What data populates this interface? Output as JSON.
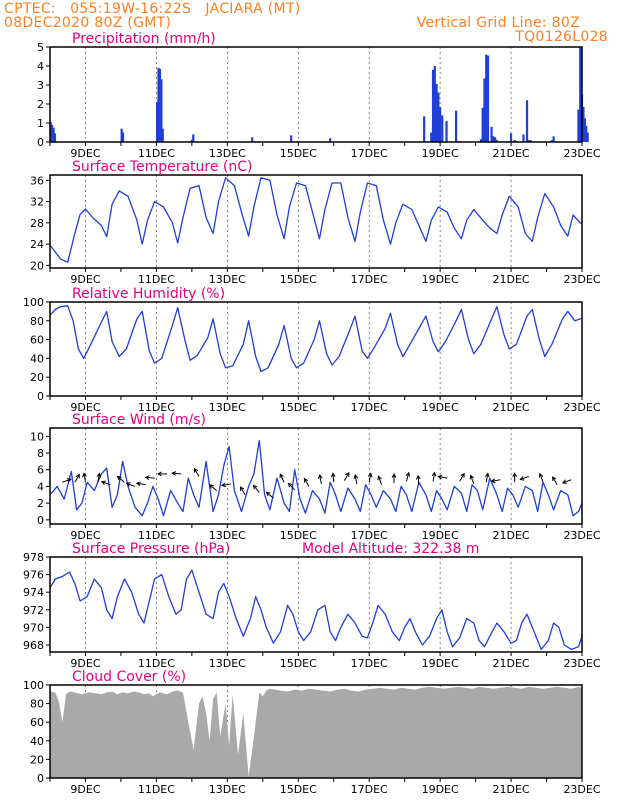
{
  "header": {
    "line1_left": "CPTEC:   055:19W-16:22S   JACIARA (MT)",
    "line2_left": "08DEC2020 80Z (GMT)",
    "line1_right": "Vertical Grid Line: 80Z",
    "line2_right": "TQ0126L028"
  },
  "colors": {
    "header": "#ff7f1f",
    "titles": "#e6007e",
    "series": "#1f3fd6",
    "cloud": "#a9a9a9"
  },
  "x_axis": {
    "start": "08DEC2020 00Z",
    "end": "23DEC2020 00Z",
    "tick_labels": [
      "9DEC",
      "11DEC",
      "13DEC",
      "15DEC",
      "17DEC",
      "19DEC",
      "21DEC",
      "23DEC"
    ]
  },
  "chart_data": [
    {
      "id": "precip",
      "type": "bar",
      "title": "Precipitation (mm/h)",
      "ylim": [
        0,
        5
      ],
      "yticks": [
        0,
        1,
        2,
        3,
        4,
        5
      ],
      "x_day": [
        0.02,
        0.06,
        0.1,
        0.14,
        2.02,
        2.06,
        3.02,
        3.06,
        3.1,
        3.14,
        3.18,
        4.0,
        4.04,
        5.7,
        6.8,
        7.9,
        10.55,
        10.75,
        10.8,
        10.85,
        10.9,
        10.95,
        11.0,
        11.06,
        11.18,
        11.45,
        11.55,
        12.15,
        12.2,
        12.25,
        12.3,
        12.35,
        12.45,
        12.5,
        12.55,
        12.6,
        13.0,
        13.1,
        13.35,
        13.45,
        13.5,
        13.55,
        14.15,
        14.2,
        14.9,
        14.95,
        15.0,
        15.04,
        15.08,
        15.12,
        15.16
      ],
      "values": [
        1.05,
        0.9,
        0.75,
        0.45,
        0.7,
        0.5,
        2.1,
        3.9,
        3.85,
        3.3,
        0.7,
        0.12,
        0.4,
        0.25,
        0.35,
        0.2,
        1.35,
        0.5,
        3.8,
        4.0,
        3.05,
        2.6,
        1.85,
        1.4,
        1.1,
        1.65,
        0.05,
        0.15,
        1.8,
        3.35,
        4.6,
        4.55,
        0.8,
        0.3,
        0.25,
        0.1,
        0.45,
        0.1,
        0.4,
        2.2,
        0.1,
        0.1,
        0.1,
        0.3,
        1.7,
        5.0,
        2.5,
        1.85,
        1.25,
        0.85,
        0.5
      ]
    },
    {
      "id": "temp",
      "type": "line",
      "title": "Surface Temperature (nC)",
      "ylim": [
        19.5,
        37
      ],
      "yticks": [
        20,
        24,
        28,
        32,
        36
      ],
      "x": [
        0,
        0.3,
        0.5,
        0.7,
        0.85,
        1.0,
        1.2,
        1.45,
        1.6,
        1.75,
        1.95,
        2.2,
        2.45,
        2.6,
        2.75,
        2.95,
        3.2,
        3.45,
        3.6,
        3.75,
        3.95,
        4.2,
        4.4,
        4.6,
        4.75,
        4.95,
        5.2,
        5.4,
        5.6,
        5.75,
        5.95,
        6.2,
        6.4,
        6.6,
        6.75,
        6.95,
        7.2,
        7.4,
        7.6,
        7.75,
        7.95,
        8.2,
        8.4,
        8.6,
        8.75,
        8.95,
        9.2,
        9.4,
        9.6,
        9.75,
        9.95,
        10.2,
        10.4,
        10.6,
        10.75,
        10.95,
        11.2,
        11.4,
        11.6,
        11.75,
        11.95,
        12.2,
        12.4,
        12.6,
        12.75,
        12.95,
        13.2,
        13.4,
        13.6,
        13.75,
        13.95,
        14.2,
        14.4,
        14.6,
        14.75,
        14.95,
        15.0
      ],
      "y": [
        23.8,
        21.2,
        20.6,
        26.0,
        29.6,
        30.6,
        29.0,
        27.5,
        25.4,
        31.5,
        34.0,
        33.0,
        28.5,
        24.0,
        28.5,
        32.0,
        31.0,
        28.0,
        24.2,
        29.0,
        34.5,
        35.0,
        29.0,
        26.0,
        32.0,
        36.5,
        35.0,
        30.0,
        25.5,
        31.0,
        36.5,
        36.0,
        29.5,
        25.0,
        31.0,
        35.5,
        35.0,
        30.0,
        25.0,
        30.5,
        35.5,
        35.5,
        29.0,
        24.5,
        30.0,
        35.5,
        35.0,
        28.5,
        24.0,
        28.0,
        31.5,
        30.5,
        27.5,
        24.5,
        28.5,
        31.0,
        30.0,
        27.0,
        25.0,
        28.5,
        30.5,
        28.5,
        27.0,
        26.0,
        29.5,
        33.0,
        31.0,
        26.0,
        24.5,
        29.0,
        33.5,
        31.0,
        27.5,
        25.5,
        29.5,
        28.0,
        27.8
      ]
    },
    {
      "id": "rh",
      "type": "line",
      "title": "Relative Humidity (%)",
      "ylim": [
        0,
        100
      ],
      "yticks": [
        0,
        20,
        40,
        60,
        80,
        100
      ],
      "x": [
        0,
        0.15,
        0.3,
        0.5,
        0.65,
        0.8,
        0.95,
        1.15,
        1.4,
        1.6,
        1.75,
        1.95,
        2.15,
        2.45,
        2.6,
        2.8,
        2.95,
        3.15,
        3.45,
        3.6,
        3.8,
        3.95,
        4.15,
        4.45,
        4.6,
        4.8,
        4.95,
        5.15,
        5.45,
        5.6,
        5.8,
        5.95,
        6.15,
        6.45,
        6.6,
        6.8,
        6.95,
        7.15,
        7.45,
        7.6,
        7.8,
        7.95,
        8.15,
        8.45,
        8.6,
        8.8,
        8.95,
        9.15,
        9.45,
        9.6,
        9.8,
        9.95,
        10.15,
        10.45,
        10.6,
        10.8,
        10.95,
        11.15,
        11.45,
        11.6,
        11.8,
        11.95,
        12.15,
        12.45,
        12.6,
        12.8,
        12.95,
        13.15,
        13.45,
        13.6,
        13.8,
        13.95,
        14.15,
        14.45,
        14.6,
        14.8,
        14.95,
        15.0
      ],
      "y": [
        86,
        92,
        95,
        96,
        80,
        50,
        40,
        55,
        75,
        90,
        58,
        42,
        50,
        82,
        90,
        48,
        35,
        40,
        75,
        94,
        60,
        38,
        43,
        62,
        82,
        45,
        30,
        32,
        55,
        80,
        42,
        26,
        30,
        55,
        75,
        40,
        30,
        35,
        60,
        80,
        45,
        33,
        42,
        70,
        85,
        48,
        40,
        52,
        72,
        88,
        55,
        42,
        55,
        75,
        85,
        58,
        47,
        58,
        80,
        92,
        60,
        45,
        55,
        82,
        95,
        65,
        50,
        55,
        85,
        92,
        60,
        42,
        55,
        82,
        90,
        80,
        82,
        83
      ]
    },
    {
      "id": "wind",
      "type": "line",
      "title": "Surface Wind (m/s)",
      "ylim": [
        -0.5,
        11
      ],
      "yticks": [
        0,
        2,
        4,
        6,
        8,
        10
      ],
      "x": [
        0,
        0.2,
        0.4,
        0.6,
        0.75,
        0.9,
        1.05,
        1.25,
        1.45,
        1.6,
        1.75,
        1.9,
        2.05,
        2.2,
        2.4,
        2.6,
        2.75,
        2.9,
        3.05,
        3.2,
        3.4,
        3.6,
        3.75,
        3.9,
        4.05,
        4.2,
        4.4,
        4.6,
        4.75,
        4.9,
        5.05,
        5.2,
        5.4,
        5.6,
        5.75,
        5.9,
        6.05,
        6.2,
        6.4,
        6.6,
        6.75,
        6.9,
        7.05,
        7.2,
        7.4,
        7.6,
        7.75,
        7.9,
        8.05,
        8.2,
        8.4,
        8.6,
        8.75,
        8.9,
        9.05,
        9.2,
        9.4,
        9.6,
        9.75,
        9.9,
        10.05,
        10.2,
        10.4,
        10.6,
        10.75,
        10.9,
        11.05,
        11.2,
        11.4,
        11.6,
        11.75,
        11.9,
        12.05,
        12.2,
        12.4,
        12.6,
        12.75,
        12.9,
        13.05,
        13.2,
        13.4,
        13.6,
        13.75,
        13.9,
        14.05,
        14.2,
        14.4,
        14.6,
        14.75,
        14.9,
        15.0
      ],
      "y": [
        3.0,
        4.0,
        2.5,
        5.8,
        1.2,
        2.0,
        4.5,
        3.5,
        5.5,
        6.2,
        1.5,
        3.0,
        7.0,
        4.0,
        1.5,
        0.5,
        2.0,
        4.0,
        2.5,
        0.5,
        3.5,
        2.0,
        1.0,
        5.0,
        3.0,
        1.5,
        7.0,
        1.0,
        3.0,
        6.5,
        8.8,
        3.5,
        1.0,
        4.0,
        5.5,
        9.5,
        3.0,
        1.2,
        5.0,
        2.0,
        1.0,
        6.0,
        2.5,
        0.8,
        3.5,
        2.5,
        0.8,
        4.5,
        3.0,
        1.0,
        3.8,
        2.5,
        1.0,
        4.2,
        3.0,
        1.5,
        3.5,
        2.5,
        1.0,
        4.0,
        3.0,
        1.0,
        4.5,
        3.0,
        1.0,
        3.5,
        2.5,
        1.2,
        4.0,
        3.2,
        1.0,
        4.2,
        3.5,
        1.2,
        5.0,
        3.0,
        1.0,
        3.8,
        3.0,
        1.5,
        4.0,
        3.5,
        1.0,
        4.5,
        3.0,
        1.2,
        3.5,
        3.0,
        0.5,
        1.0,
        2.0
      ],
      "barbs": [
        {
          "x": 0.35,
          "y": 4.5,
          "dir": -20
        },
        {
          "x": 0.7,
          "y": 4.5,
          "dir": -60
        },
        {
          "x": 1.0,
          "y": 4.5,
          "dir": -100
        },
        {
          "x": 1.35,
          "y": 4.5,
          "dir": -80
        },
        {
          "x": 1.7,
          "y": 4.2,
          "dir": 200
        },
        {
          "x": 2.1,
          "y": 4.5,
          "dir": -140
        },
        {
          "x": 2.4,
          "y": 4.0,
          "dir": -160
        },
        {
          "x": 2.7,
          "y": 4.2,
          "dir": 190
        },
        {
          "x": 2.95,
          "y": 5.0,
          "dir": 185
        },
        {
          "x": 3.3,
          "y": 5.5,
          "dir": 180
        },
        {
          "x": 3.7,
          "y": 5.5,
          "dir": 185
        },
        {
          "x": 4.2,
          "y": 5.2,
          "dir": -120
        },
        {
          "x": 4.7,
          "y": 3.5,
          "dir": -140
        },
        {
          "x": 5.1,
          "y": 4.3,
          "dir": 170
        },
        {
          "x": 5.5,
          "y": 3.0,
          "dir": -120
        },
        {
          "x": 5.9,
          "y": 3.3,
          "dir": -130
        },
        {
          "x": 6.3,
          "y": 2.6,
          "dir": -140
        },
        {
          "x": 6.6,
          "y": 4.5,
          "dir": -115
        },
        {
          "x": 6.9,
          "y": 3.6,
          "dir": -135
        },
        {
          "x": 7.3,
          "y": 4.0,
          "dir": -120
        },
        {
          "x": 7.65,
          "y": 4.3,
          "dir": -100
        },
        {
          "x": 8.0,
          "y": 4.5,
          "dir": -95
        },
        {
          "x": 8.3,
          "y": 4.7,
          "dir": -60
        },
        {
          "x": 8.65,
          "y": 4.3,
          "dir": -100
        },
        {
          "x": 9.0,
          "y": 4.5,
          "dir": -80
        },
        {
          "x": 9.35,
          "y": 4.2,
          "dir": -110
        },
        {
          "x": 9.7,
          "y": 4.4,
          "dir": -90
        },
        {
          "x": 10.05,
          "y": 4.6,
          "dir": -75
        },
        {
          "x": 10.4,
          "y": 4.2,
          "dir": -95
        },
        {
          "x": 10.8,
          "y": 4.6,
          "dir": -80
        },
        {
          "x": 11.2,
          "y": 5.0,
          "dir": 190
        },
        {
          "x": 11.55,
          "y": 4.6,
          "dir": -60
        },
        {
          "x": 11.95,
          "y": 4.3,
          "dir": -110
        },
        {
          "x": 12.3,
          "y": 4.5,
          "dir": -80
        },
        {
          "x": 12.7,
          "y": 4.8,
          "dir": 170
        },
        {
          "x": 13.1,
          "y": 4.5,
          "dir": -90
        },
        {
          "x": 13.5,
          "y": 5.2,
          "dir": 160
        },
        {
          "x": 13.9,
          "y": 4.5,
          "dir": -110
        },
        {
          "x": 14.3,
          "y": 4.2,
          "dir": -120
        },
        {
          "x": 14.7,
          "y": 4.8,
          "dir": 160
        }
      ]
    },
    {
      "id": "pressure",
      "type": "line",
      "title": "Surface Pressure (hPa)",
      "annotation": "Model Altitude: 322.38 m",
      "ylim": [
        967.2,
        978
      ],
      "yticks": [
        968,
        970,
        972,
        974,
        976,
        978
      ],
      "x": [
        0,
        0.15,
        0.35,
        0.55,
        0.7,
        0.85,
        1.05,
        1.25,
        1.45,
        1.6,
        1.75,
        1.9,
        2.1,
        2.3,
        2.5,
        2.65,
        2.8,
        2.95,
        3.15,
        3.35,
        3.55,
        3.7,
        3.85,
        4.0,
        4.2,
        4.4,
        4.6,
        4.75,
        4.9,
        5.05,
        5.25,
        5.45,
        5.65,
        5.8,
        5.95,
        6.1,
        6.3,
        6.5,
        6.7,
        6.85,
        7.0,
        7.15,
        7.35,
        7.55,
        7.75,
        7.9,
        8.05,
        8.2,
        8.4,
        8.6,
        8.8,
        8.95,
        9.1,
        9.25,
        9.45,
        9.65,
        9.85,
        10.0,
        10.15,
        10.3,
        10.5,
        10.7,
        10.9,
        11.05,
        11.2,
        11.35,
        11.55,
        11.75,
        11.95,
        12.1,
        12.25,
        12.4,
        12.6,
        12.8,
        13.0,
        13.15,
        13.3,
        13.45,
        13.65,
        13.85,
        14.05,
        14.2,
        14.35,
        14.5,
        14.7,
        14.9,
        15.0
      ],
      "y": [
        974.5,
        975.5,
        975.8,
        976.3,
        975.0,
        973.0,
        973.5,
        975.5,
        974.5,
        972.0,
        971.0,
        973.5,
        975.5,
        974.0,
        971.5,
        970.5,
        973.0,
        975.5,
        976.0,
        973.5,
        971.5,
        972.0,
        975.5,
        976.5,
        974.0,
        971.5,
        971.0,
        974.0,
        975.0,
        973.5,
        971.0,
        969.0,
        971.0,
        973.5,
        972.0,
        970.0,
        968.2,
        969.5,
        972.5,
        971.5,
        969.5,
        968.5,
        969.5,
        972.0,
        972.5,
        969.5,
        968.5,
        970.0,
        971.5,
        970.5,
        969.0,
        968.8,
        970.5,
        972.5,
        971.5,
        969.5,
        968.5,
        970.0,
        971.0,
        969.5,
        968.0,
        969.0,
        971.0,
        972.0,
        969.5,
        967.8,
        968.8,
        971.0,
        970.5,
        968.5,
        967.8,
        969.0,
        970.5,
        969.5,
        968.2,
        968.5,
        970.5,
        971.5,
        969.5,
        967.5,
        968.5,
        970.5,
        970.0,
        968.0,
        967.5,
        967.8,
        969.0
      ]
    },
    {
      "id": "cloud",
      "type": "area",
      "title": "Cloud Cover (%)",
      "ylim": [
        0,
        100
      ],
      "yticks": [
        0,
        20,
        40,
        60,
        80,
        100
      ],
      "x": [
        0,
        0.15,
        0.25,
        0.35,
        0.45,
        0.55,
        0.7,
        0.9,
        1.1,
        1.3,
        1.45,
        1.6,
        1.75,
        1.9,
        2.05,
        2.2,
        2.35,
        2.5,
        2.65,
        2.8,
        2.9,
        3.0,
        3.1,
        3.2,
        3.3,
        3.45,
        3.6,
        3.75,
        3.9,
        4.05,
        4.2,
        4.3,
        4.4,
        4.5,
        4.6,
        4.7,
        4.8,
        4.95,
        5.05,
        5.15,
        5.3,
        5.45,
        5.6,
        5.7,
        5.8,
        5.9,
        6.0,
        6.1,
        6.2,
        6.35,
        6.5,
        6.7,
        6.9,
        7.1,
        7.3,
        7.5,
        7.7,
        7.9,
        8.1,
        8.3,
        8.5,
        8.7,
        8.9,
        9.1,
        9.3,
        9.5,
        9.7,
        9.9,
        10.1,
        10.3,
        10.5,
        10.7,
        10.9,
        11.1,
        11.3,
        11.5,
        11.7,
        11.9,
        12.1,
        12.3,
        12.5,
        12.7,
        12.9,
        13.1,
        13.3,
        13.5,
        13.7,
        13.9,
        14.1,
        14.3,
        14.5,
        14.7,
        14.9,
        15.0
      ],
      "y": [
        93,
        92,
        82,
        60,
        90,
        93,
        92,
        90,
        92,
        91,
        90,
        92,
        93,
        90,
        92,
        91,
        93,
        92,
        90,
        91,
        88,
        90,
        92,
        91,
        90,
        93,
        94,
        92,
        60,
        30,
        80,
        88,
        70,
        40,
        85,
        92,
        45,
        80,
        35,
        90,
        25,
        70,
        2,
        30,
        60,
        92,
        88,
        94,
        96,
        95,
        94,
        93,
        95,
        94,
        96,
        95,
        94,
        93,
        95,
        96,
        94,
        93,
        95,
        96,
        97,
        96,
        95,
        97,
        96,
        95,
        97,
        98,
        97,
        96,
        97,
        98,
        97,
        96,
        98,
        97,
        96,
        97,
        98,
        97,
        96,
        98,
        97,
        96,
        97,
        98,
        97,
        96,
        98,
        97
      ]
    }
  ]
}
